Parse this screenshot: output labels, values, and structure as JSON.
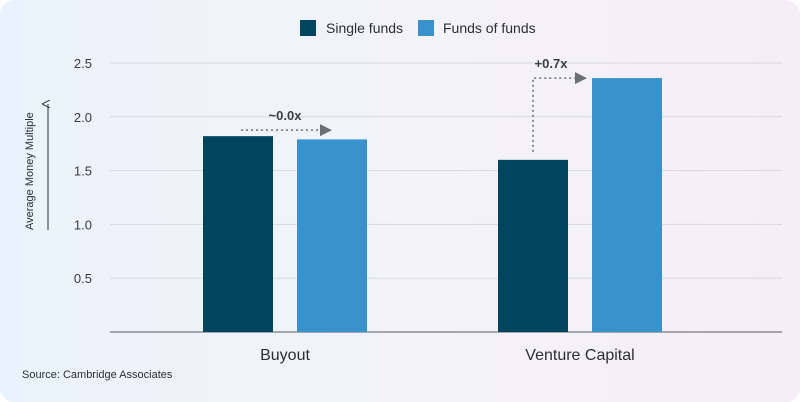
{
  "colors": {
    "single": "#01445e",
    "fof": "#3a92cc",
    "grid": "#d6d9de",
    "axis": "#555a60",
    "annotation": "#6a6f75"
  },
  "source": "Source: Cambridge Associates",
  "chart_data": {
    "type": "bar",
    "title": "",
    "xlabel": "",
    "ylabel": "Average Money Multiple",
    "ylim": [
      0,
      2.5
    ],
    "y_ticks": [
      "2.5",
      "2.0",
      "1.5",
      "1.0",
      "0.5"
    ],
    "grid": true,
    "legend_position": "top-center",
    "categories": [
      "Buyout",
      "Venture Capital"
    ],
    "series": [
      {
        "name": "Single funds",
        "values": [
          1.82,
          1.6
        ]
      },
      {
        "name": "Funds of funds",
        "values": [
          1.79,
          2.36
        ]
      }
    ],
    "annotations": [
      "~0.0x",
      "+0.7x"
    ]
  }
}
